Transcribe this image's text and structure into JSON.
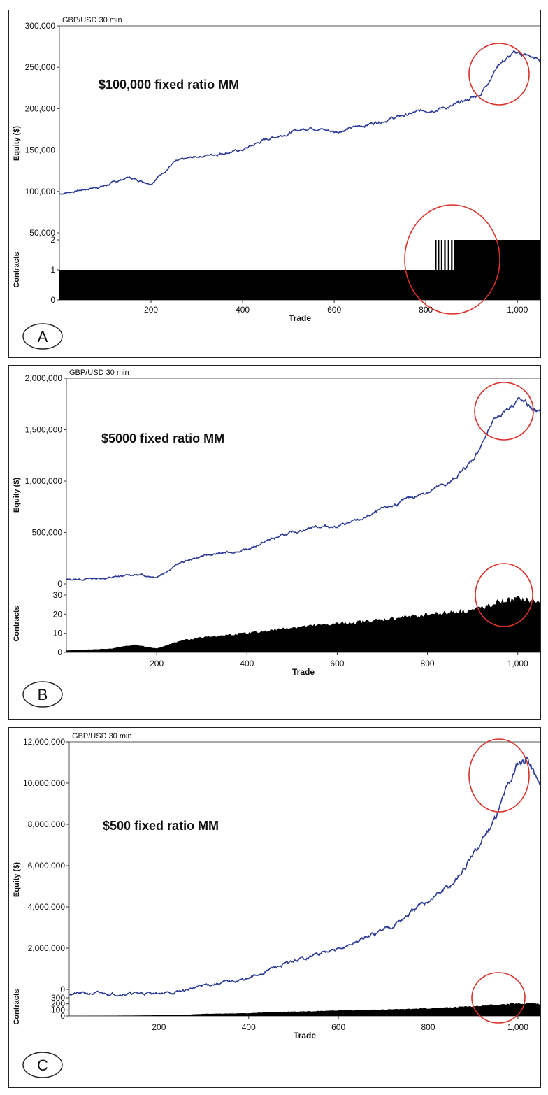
{
  "colors": {
    "equity_line": "#2b3a96",
    "contracts_fill": "#000000",
    "highlight_circle": "#d9322b",
    "frame": "#222222"
  },
  "chart_data": [
    {
      "type": "line",
      "panel_letter": "A",
      "title": "GBP/USD 30 min",
      "annotation": "$100,000 fixed ratio MM",
      "xlabel": "Trade",
      "ylabel": "Equity ($)",
      "xlim": [
        0,
        1050
      ],
      "x_ticks": [
        200,
        400,
        600,
        800,
        1000
      ],
      "x_tick_labels": [
        "200",
        "400",
        "600",
        "800",
        "1,000"
      ],
      "equity": {
        "ylim": [
          50000,
          300000
        ],
        "y_ticks": [
          50000,
          100000,
          150000,
          200000,
          250000,
          300000
        ],
        "y_tick_labels": [
          "50,000",
          "100,000",
          "150,000",
          "200,000",
          "250,000",
          "300,000"
        ],
        "x": [
          0,
          100,
          150,
          200,
          250,
          300,
          400,
          450,
          550,
          600,
          650,
          700,
          800,
          860,
          920,
          960,
          1000,
          1050
        ],
        "y": [
          97000,
          107000,
          117000,
          110000,
          135000,
          142000,
          150000,
          163000,
          178000,
          172000,
          178000,
          185000,
          198000,
          203000,
          218000,
          255000,
          268000,
          258000
        ]
      },
      "contracts": {
        "ylabel": "Contracts",
        "ylim": [
          0,
          2
        ],
        "y_ticks": [
          0,
          1,
          2
        ],
        "y_tick_labels": [
          "0",
          "1",
          "2"
        ],
        "x": [
          0,
          820,
          830,
          845,
          860,
          1050
        ],
        "y": [
          1,
          1,
          2,
          1,
          2,
          2
        ]
      },
      "highlight": "circles around equity peak and switch to 2 contracts"
    },
    {
      "type": "line",
      "panel_letter": "B",
      "title": "GBP/USD 30 min",
      "annotation": "$5000 fixed ratio MM",
      "xlabel": "Trade",
      "ylabel": "Equity ($)",
      "xlim": [
        0,
        1050
      ],
      "x_ticks": [
        200,
        400,
        600,
        800,
        1000
      ],
      "x_tick_labels": [
        "200",
        "400",
        "600",
        "800",
        "1,000"
      ],
      "equity": {
        "ylim": [
          0,
          2000000
        ],
        "y_ticks": [
          0,
          500000,
          1000000,
          1500000,
          2000000
        ],
        "y_tick_labels": [
          "0",
          "500,000",
          "1,000,000",
          "1,500,000",
          "2,000,000"
        ],
        "x": [
          0,
          100,
          150,
          200,
          250,
          300,
          400,
          450,
          550,
          600,
          650,
          700,
          800,
          850,
          900,
          950,
          1000,
          1050
        ],
        "y": [
          40000,
          60000,
          90000,
          70000,
          200000,
          270000,
          330000,
          430000,
          560000,
          560000,
          620000,
          720000,
          900000,
          980000,
          1200000,
          1600000,
          1800000,
          1650000
        ]
      },
      "contracts": {
        "ylabel": "Contracts",
        "ylim": [
          0,
          30
        ],
        "y_ticks": [
          0,
          10,
          20,
          30
        ],
        "y_tick_labels": [
          "0",
          "10",
          "20",
          "30"
        ],
        "x": [
          0,
          100,
          150,
          200,
          250,
          300,
          400,
          500,
          600,
          700,
          800,
          900,
          950,
          1000,
          1050
        ],
        "y": [
          1,
          2,
          4,
          2,
          6,
          8,
          10,
          13,
          15,
          17,
          20,
          22,
          26,
          28,
          26
        ]
      },
      "highlight": "circles around equity peak and contracts peak"
    },
    {
      "type": "line",
      "panel_letter": "C",
      "title": "GBP/USD 30 min",
      "annotation": "$500 fixed ratio MM",
      "xlabel": "Trade",
      "ylabel": "Equity ($)",
      "xlim": [
        0,
        1050
      ],
      "x_ticks": [
        200,
        400,
        600,
        800,
        1000
      ],
      "x_tick_labels": [
        "200",
        "400",
        "600",
        "800",
        "1,000"
      ],
      "equity": {
        "ylim": [
          0,
          12000000
        ],
        "y_ticks": [
          0,
          2000000,
          4000000,
          6000000,
          8000000,
          10000000,
          12000000
        ],
        "y_tick_labels": [
          "0",
          "2,000,000",
          "4,000,000",
          "6,000,000",
          "8,000,000",
          "10,000,000",
          "12,000,000"
        ],
        "x": [
          0,
          150,
          240,
          300,
          400,
          450,
          550,
          600,
          650,
          700,
          750,
          800,
          850,
          900,
          950,
          1000,
          1020,
          1050
        ],
        "y": [
          -200000,
          -200000,
          -150000,
          200000,
          500000,
          1000000,
          1700000,
          1900000,
          2400000,
          2900000,
          3500000,
          4300000,
          5000000,
          6400000,
          8400000,
          11000000,
          11300000,
          9800000
        ]
      },
      "contracts": {
        "ylabel": "Contracts",
        "ylim": [
          0,
          300
        ],
        "y_ticks": [
          0,
          100,
          200,
          300
        ],
        "y_tick_labels": [
          "0",
          "100",
          "200",
          "300"
        ],
        "x": [
          0,
          150,
          240,
          300,
          400,
          450,
          550,
          600,
          700,
          800,
          900,
          950,
          1000,
          1050
        ],
        "y": [
          2,
          8,
          15,
          35,
          45,
          65,
          80,
          90,
          105,
          125,
          160,
          185,
          210,
          200
        ]
      },
      "highlight": "circles around equity peak and contracts peak"
    }
  ]
}
